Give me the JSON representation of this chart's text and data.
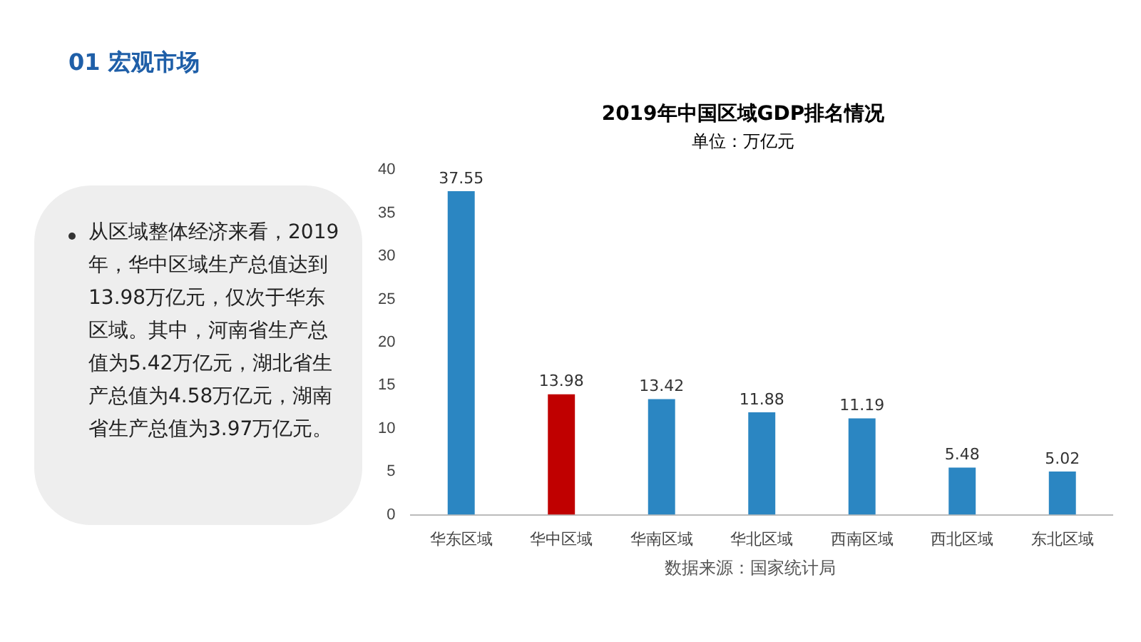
{
  "chart_data": {
    "type": "bar",
    "title": "2019年中国区域GDP排名情况",
    "subtitle": "单位：万亿元",
    "categories": [
      "华东区域",
      "华中区域",
      "华南区域",
      "华北区域",
      "西南区域",
      "西北区域",
      "东北区域"
    ],
    "values": [
      37.55,
      13.98,
      13.42,
      11.88,
      11.19,
      5.48,
      5.02
    ],
    "colors": [
      "#2b86c2",
      "#c00000",
      "#2b86c2",
      "#2b86c2",
      "#2b86c2",
      "#2b86c2",
      "#2b86c2"
    ],
    "ylim": [
      0,
      40
    ],
    "yticks": [
      0,
      5,
      10,
      15,
      20,
      25,
      30,
      35,
      40
    ],
    "grid": false,
    "legend": false,
    "data_labels": true,
    "annotations": [
      "01 宏观市场",
      "从区域整体经济来看，2019年，华中区域生产总值达到13.98万亿元，仅次于华东区域。其中，河南省生产总值为5.42万亿元，湖北省生产总值为4.58万亿元，湖南省生产总值为3.97万亿元。",
      "数据来源：国家统计局"
    ]
  }
}
